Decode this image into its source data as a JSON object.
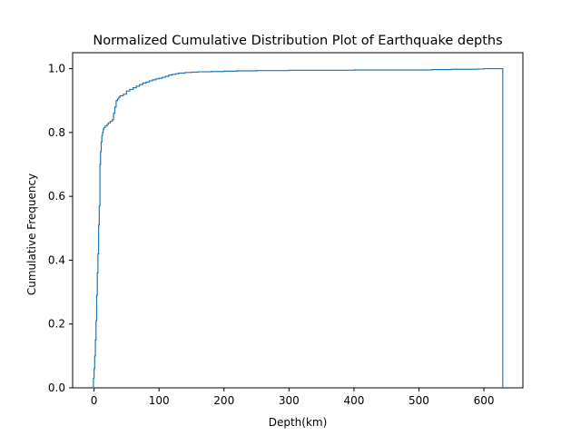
{
  "chart_data": {
    "type": "line",
    "subtype": "step-cdf",
    "title": "Normalized Cumulative Distribution Plot of Earthquake depths",
    "xlabel": "Depth(km)",
    "ylabel": "Cumulative Frequency",
    "xlim": [
      -33,
      660
    ],
    "ylim": [
      0,
      1.05
    ],
    "xticks": [
      0,
      100,
      200,
      300,
      400,
      500,
      600
    ],
    "yticks": [
      0.0,
      0.2,
      0.4,
      0.6,
      0.8,
      1.0
    ],
    "xtick_labels": [
      "0",
      "100",
      "200",
      "300",
      "400",
      "500",
      "600"
    ],
    "ytick_labels": [
      "0.0",
      "0.2",
      "0.4",
      "0.6",
      "0.8",
      "1.0"
    ],
    "grid": false,
    "legend": "none",
    "series": [
      {
        "color": "#1f77b4",
        "x": [
          -2,
          -1,
          0,
          1,
          2,
          3,
          4,
          5,
          6,
          7,
          8,
          9,
          10,
          11,
          12,
          13,
          14,
          15,
          17,
          20,
          22,
          25,
          28,
          30,
          32,
          34,
          36,
          38,
          40,
          45,
          50,
          55,
          60,
          65,
          70,
          75,
          80,
          85,
          90,
          95,
          100,
          105,
          110,
          115,
          120,
          125,
          130,
          140,
          150,
          160,
          180,
          200,
          220,
          250,
          300,
          400,
          500,
          520,
          550,
          580,
          590,
          600,
          629
        ],
        "y": [
          0.0,
          0.03,
          0.06,
          0.1,
          0.15,
          0.21,
          0.29,
          0.36,
          0.42,
          0.51,
          0.57,
          0.7,
          0.74,
          0.77,
          0.79,
          0.8,
          0.81,
          0.815,
          0.82,
          0.825,
          0.83,
          0.835,
          0.84,
          0.86,
          0.88,
          0.9,
          0.905,
          0.91,
          0.915,
          0.92,
          0.93,
          0.935,
          0.94,
          0.945,
          0.95,
          0.955,
          0.958,
          0.962,
          0.965,
          0.968,
          0.97,
          0.973,
          0.976,
          0.98,
          0.982,
          0.984,
          0.986,
          0.988,
          0.989,
          0.99,
          0.991,
          0.992,
          0.993,
          0.994,
          0.995,
          0.996,
          0.996,
          0.997,
          0.998,
          0.998,
          0.999,
          1.0,
          1.0
        ],
        "drop_to_zero_at_end": true
      }
    ]
  }
}
